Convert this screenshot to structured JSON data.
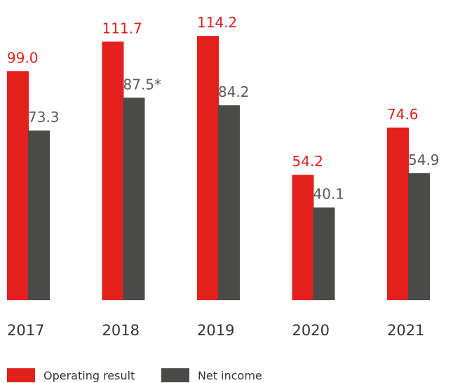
{
  "chart_data": {
    "type": "bar",
    "categories": [
      "2017",
      "2018",
      "2019",
      "2020",
      "2021"
    ],
    "series": [
      {
        "name": "Operating result",
        "color": "#e3201b",
        "values": [
          99.0,
          111.7,
          114.2,
          54.2,
          74.6
        ],
        "value_labels": [
          "99.0",
          "111.7",
          "114.2",
          "54.2",
          "74.6"
        ]
      },
      {
        "name": "Net income",
        "color": "#4a4a48",
        "values": [
          73.3,
          87.5,
          84.2,
          40.1,
          54.9
        ],
        "value_labels": [
          "73.3",
          "87.5*",
          "84.2",
          "40.1",
          "54.9"
        ]
      }
    ]
  }
}
